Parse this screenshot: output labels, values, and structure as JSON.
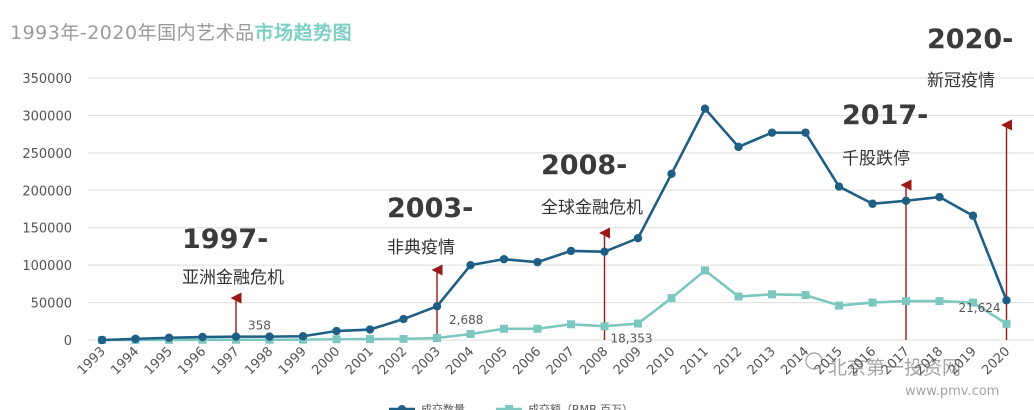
{
  "title": {
    "prefix": "1993年-2020年国内艺术品",
    "highlight": "市场趋势图"
  },
  "colors": {
    "count": "#1f5f85",
    "amount": "#7cc7bf",
    "arrow": "#9a1818",
    "grid": "#dddddd"
  },
  "chart_data": {
    "type": "line",
    "title": "1993年-2020年国内艺术品市场趋势图",
    "categories": [
      "1993",
      "1994",
      "1995",
      "1996",
      "1997",
      "1998",
      "1999",
      "2000",
      "2001",
      "2002",
      "2003",
      "2004",
      "2005",
      "2006",
      "2007",
      "2008",
      "2009",
      "2010",
      "2011",
      "2012",
      "2013",
      "2014",
      "2015",
      "2016",
      "2017",
      "2018",
      "2019",
      "2020"
    ],
    "ylim": [
      0,
      350000
    ],
    "yticks": [
      "0",
      "50000",
      "100000",
      "150000",
      "200000",
      "250000",
      "300000",
      "350000"
    ],
    "series": [
      {
        "name": "成交数量",
        "values": [
          0,
          1500,
          3000,
          4000,
          4500,
          4500,
          5000,
          12000,
          14000,
          28000,
          45000,
          100000,
          108000,
          104000,
          119000,
          118000,
          136000,
          222000,
          309000,
          258000,
          277000,
          277000,
          205000,
          182000,
          186000,
          191000,
          166000,
          53000
        ]
      },
      {
        "name": "成交额（RMB 百万）",
        "values": [
          0,
          0,
          200,
          300,
          358,
          300,
          500,
          1000,
          1200,
          1500,
          2688,
          8000,
          15000,
          15000,
          21000,
          18353,
          22000,
          56000,
          93000,
          58000,
          61000,
          60000,
          46000,
          50000,
          52000,
          52000,
          50000,
          21624
        ]
      }
    ],
    "annotations": [
      {
        "year": "1997",
        "event_year": "1997-",
        "event_label": "亚洲金融危机",
        "value_label": "358"
      },
      {
        "year": "2003",
        "event_year": "2003-",
        "event_label": "非典疫情",
        "value_label": "2,688"
      },
      {
        "year": "2008",
        "event_year": "2008-",
        "event_label": "全球金融危机",
        "value_label": "18,353"
      },
      {
        "year": "2017",
        "event_year": "2017-",
        "event_label": "千股跌停"
      },
      {
        "year": "2020",
        "event_year": "2020-",
        "event_label": "新冠疫情",
        "value_label": "21,624"
      }
    ],
    "legend_position": "bottom",
    "grid": true
  },
  "watermark": {
    "account": "北京第一投资网",
    "site": "www.pmv.com"
  }
}
